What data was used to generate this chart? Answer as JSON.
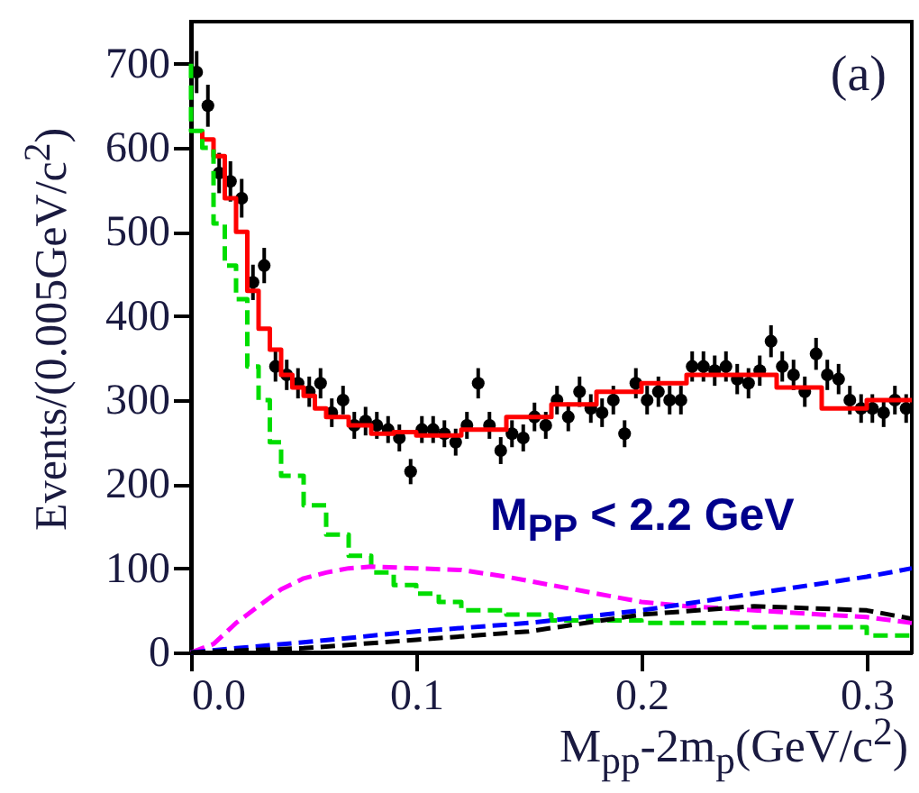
{
  "chart_data": {
    "type": "scatter",
    "xlabel": "M$_{pp}$-2m$_{p}$(GeV/c$^{2}$)",
    "ylabel": "Events/(0.005GeV/c$^{2}$)",
    "annotations": [
      "(a)",
      "M$_{PP}$  < 2.2 GeV"
    ],
    "xlim": [
      0,
      0.32
    ],
    "ylim": [
      0,
      750
    ],
    "xticks": [
      {
        "value": 0,
        "label": "0.0"
      },
      0.1,
      0.2,
      0.3
    ],
    "yticks": [
      0,
      100,
      200,
      300,
      400,
      500,
      600,
      700
    ],
    "grid": false,
    "series": [
      {
        "marker": "circle",
        "color": "#000000",
        "x": [
          0.0025,
          0.0075,
          0.0125,
          0.0175,
          0.0225,
          0.0275,
          0.0325,
          0.0375,
          0.0425,
          0.0475,
          0.0525,
          0.0575,
          0.0625,
          0.0675,
          0.0725,
          0.0775,
          0.0825,
          0.0875,
          0.0925,
          0.0975,
          0.1025,
          0.1075,
          0.1125,
          0.1175,
          0.1225,
          0.1275,
          0.1325,
          0.1375,
          0.1425,
          0.1475,
          0.1525,
          0.1575,
          0.1625,
          0.1675,
          0.1725,
          0.1775,
          0.1825,
          0.1875,
          0.1925,
          0.1975,
          0.2025,
          0.2075,
          0.2125,
          0.2175,
          0.2225,
          0.2275,
          0.2325,
          0.2375,
          0.2425,
          0.2475,
          0.2525,
          0.2575,
          0.2625,
          0.2675,
          0.2725,
          0.2775,
          0.2825,
          0.2875,
          0.2925,
          0.2975,
          0.3025,
          0.3075,
          0.3125,
          0.3175
        ],
        "values": [
          690,
          650,
          570,
          560,
          540,
          440,
          460,
          340,
          330,
          320,
          310,
          320,
          285,
          300,
          270,
          275,
          270,
          265,
          255,
          215,
          265,
          265,
          260,
          250,
          270,
          320,
          270,
          240,
          260,
          255,
          280,
          270,
          300,
          280,
          310,
          290,
          285,
          300,
          260,
          320,
          300,
          310,
          300,
          300,
          340,
          340,
          335,
          340,
          325,
          320,
          335,
          370,
          340,
          330,
          310,
          355,
          330,
          325,
          300,
          290,
          290,
          285,
          300,
          290
        ],
        "errors": [
          25,
          25,
          24,
          24,
          23,
          21,
          21,
          18,
          18,
          18,
          18,
          18,
          17,
          17,
          16,
          17,
          16,
          16,
          16,
          15,
          16,
          16,
          16,
          16,
          16,
          18,
          16,
          16,
          16,
          16,
          17,
          16,
          17,
          17,
          18,
          17,
          17,
          17,
          16,
          18,
          17,
          18,
          17,
          17,
          18,
          18,
          18,
          18,
          18,
          18,
          18,
          19,
          18,
          18,
          18,
          19,
          18,
          18,
          17,
          17,
          17,
          17,
          17,
          17
        ]
      },
      {
        "type": "step",
        "color": "#ff0000",
        "line_style": "solid",
        "x": [
          0.005,
          0.01,
          0.015,
          0.02,
          0.025,
          0.03,
          0.035,
          0.04,
          0.045,
          0.05,
          0.055,
          0.06,
          0.07,
          0.08,
          0.09,
          0.1,
          0.12,
          0.14,
          0.16,
          0.18,
          0.2,
          0.22,
          0.24,
          0.26,
          0.28,
          0.3,
          0.31,
          0.32
        ],
        "values": [
          620,
          610,
          590,
          540,
          500,
          430,
          385,
          360,
          330,
          315,
          305,
          290,
          280,
          270,
          260,
          262,
          258,
          265,
          280,
          295,
          310,
          320,
          330,
          330,
          315,
          290,
          300,
          300
        ]
      },
      {
        "type": "step",
        "color": "#00dd00",
        "line_style": "dashed",
        "x": [
          0,
          0.005,
          0.01,
          0.015,
          0.02,
          0.025,
          0.03,
          0.035,
          0.04,
          0.05,
          0.06,
          0.07,
          0.08,
          0.09,
          0.1,
          0.11,
          0.12,
          0.14,
          0.16,
          0.2,
          0.25,
          0.3,
          0.32
        ],
        "values": [
          700,
          620,
          600,
          510,
          460,
          420,
          340,
          300,
          250,
          210,
          175,
          140,
          115,
          95,
          80,
          70,
          60,
          50,
          45,
          38,
          35,
          30,
          20
        ]
      },
      {
        "type": "line",
        "color": "#ff00ff",
        "line_style": "dashed",
        "x": [
          0,
          0.01,
          0.02,
          0.03,
          0.04,
          0.05,
          0.06,
          0.07,
          0.08,
          0.1,
          0.12,
          0.14,
          0.16,
          0.18,
          0.2,
          0.22,
          0.25,
          0.28,
          0.3,
          0.32
        ],
        "values": [
          0,
          10,
          35,
          55,
          75,
          88,
          95,
          100,
          102,
          100,
          98,
          90,
          80,
          70,
          60,
          55,
          50,
          45,
          42,
          35
        ]
      },
      {
        "type": "line",
        "color": "#0000ff",
        "line_style": "dashed",
        "x": [
          0,
          0.02,
          0.05,
          0.1,
          0.15,
          0.2,
          0.25,
          0.3,
          0.32
        ],
        "values": [
          0,
          5,
          12,
          25,
          35,
          50,
          70,
          90,
          100
        ]
      },
      {
        "type": "line",
        "color": "#000000",
        "line_style": "dashed",
        "x": [
          0,
          0.05,
          0.1,
          0.15,
          0.2,
          0.25,
          0.3,
          0.32
        ],
        "values": [
          0,
          5,
          15,
          25,
          45,
          55,
          50,
          40
        ]
      }
    ]
  }
}
